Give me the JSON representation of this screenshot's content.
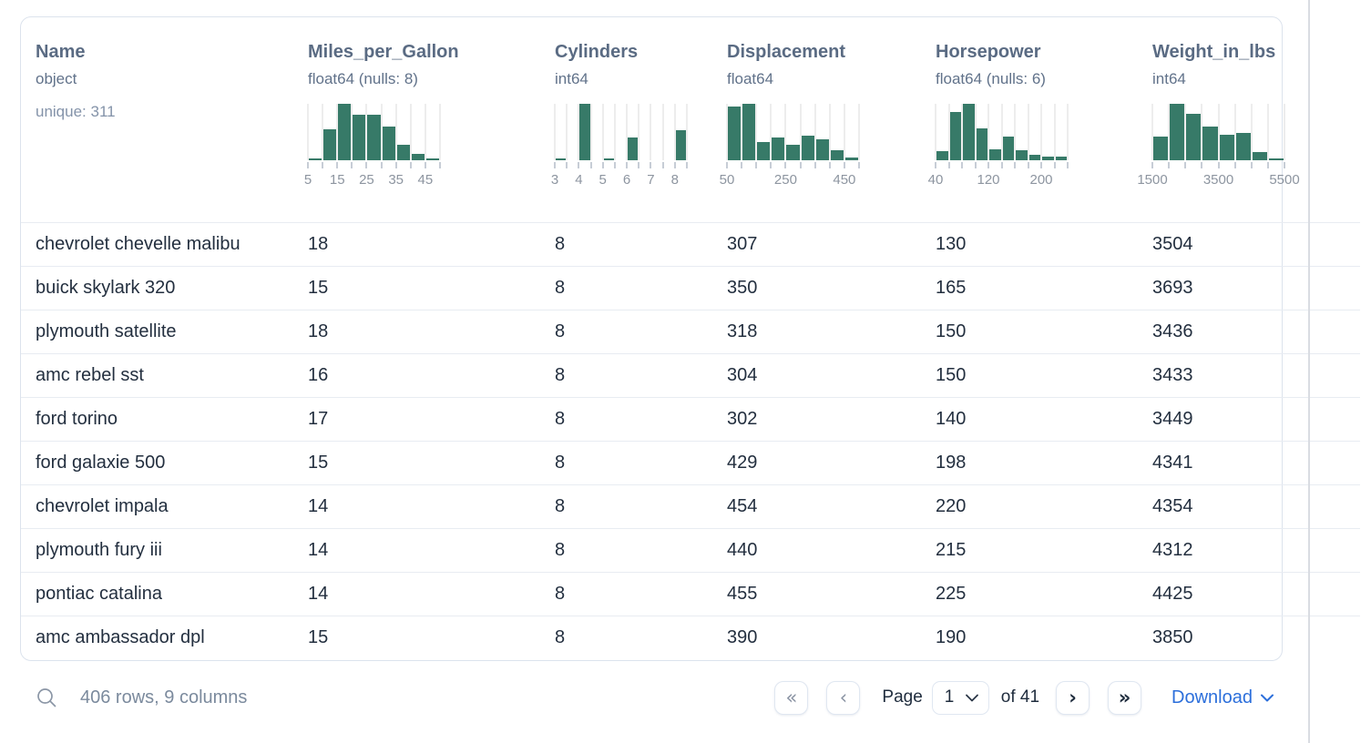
{
  "dataset": {
    "columns": [
      {
        "name": "Name",
        "type": "object",
        "unique": "unique: 311"
      },
      {
        "name": "Miles_per_Gallon",
        "type": "float64 (nulls: 8)",
        "histogram": {
          "heights": [
            0.03,
            0.55,
            1.0,
            0.8,
            0.8,
            0.6,
            0.28,
            0.11,
            0.03
          ],
          "tick_labels": [
            {
              "text": "5",
              "boundary": 0
            },
            {
              "text": "15",
              "boundary": 2
            },
            {
              "text": "25",
              "boundary": 4
            },
            {
              "text": "35",
              "boundary": 6
            },
            {
              "text": "45",
              "boundary": 8
            }
          ]
        }
      },
      {
        "name": "Cylinders",
        "type": "int64",
        "histogram": {
          "heights": [
            0.03,
            0,
            1.0,
            0,
            0.02,
            0,
            0.41,
            0,
            0,
            0,
            0.53
          ],
          "tick_labels": [
            {
              "text": "3",
              "boundary": 0
            },
            {
              "text": "4",
              "boundary": 2
            },
            {
              "text": "5",
              "boundary": 4
            },
            {
              "text": "6",
              "boundary": 6
            },
            {
              "text": "7",
              "boundary": 8
            },
            {
              "text": "8",
              "boundary": 10
            }
          ]
        }
      },
      {
        "name": "Displacement",
        "type": "float64",
        "histogram": {
          "heights": [
            0.95,
            1.0,
            0.33,
            0.4,
            0.28,
            0.43,
            0.37,
            0.18,
            0.05
          ],
          "tick_labels": [
            {
              "text": "50",
              "boundary": 0
            },
            {
              "text": "250",
              "boundary": 4
            },
            {
              "text": "450",
              "boundary": 8
            }
          ]
        }
      },
      {
        "name": "Horsepower",
        "type": "float64 (nulls: 6)",
        "histogram": {
          "heights": [
            0.16,
            0.85,
            1.0,
            0.57,
            0.2,
            0.42,
            0.18,
            0.1,
            0.07,
            0.06
          ],
          "tick_labels": [
            {
              "text": "40",
              "boundary": 0
            },
            {
              "text": "120",
              "boundary": 4
            },
            {
              "text": "200",
              "boundary": 8
            }
          ]
        }
      },
      {
        "name": "Weight_in_lbs",
        "type": "int64",
        "histogram": {
          "heights": [
            0.42,
            1.0,
            0.82,
            0.6,
            0.45,
            0.49,
            0.15,
            0.03
          ],
          "tick_labels": [
            {
              "text": "1500",
              "boundary": 0
            },
            {
              "text": "3500",
              "boundary": 4
            },
            {
              "text": "5500",
              "boundary": 8
            }
          ]
        }
      }
    ],
    "rows": [
      [
        "chevrolet chevelle malibu",
        "18",
        "8",
        "307",
        "130",
        "3504"
      ],
      [
        "buick skylark 320",
        "15",
        "8",
        "350",
        "165",
        "3693"
      ],
      [
        "plymouth satellite",
        "18",
        "8",
        "318",
        "150",
        "3436"
      ],
      [
        "amc rebel sst",
        "16",
        "8",
        "304",
        "150",
        "3433"
      ],
      [
        "ford torino",
        "17",
        "8",
        "302",
        "140",
        "3449"
      ],
      [
        "ford galaxie 500",
        "15",
        "8",
        "429",
        "198",
        "4341"
      ],
      [
        "chevrolet impala",
        "14",
        "8",
        "454",
        "220",
        "4354"
      ],
      [
        "plymouth fury iii",
        "14",
        "8",
        "440",
        "215",
        "4312"
      ],
      [
        "pontiac catalina",
        "14",
        "8",
        "455",
        "225",
        "4425"
      ],
      [
        "amc ambassador dpl",
        "15",
        "8",
        "390",
        "190",
        "3850"
      ]
    ]
  },
  "footer": {
    "status": "406 rows, 9 columns",
    "first_glyph": "«",
    "prev_glyph": "‹",
    "next_glyph": "›",
    "last_glyph": "»",
    "page_label": "Page",
    "page_value": "1",
    "of_label": "of 41",
    "download_label": "Download"
  },
  "colors": {
    "bar_green": "#377a68",
    "accent_blue": "#2c6fdb",
    "header_text": "#5a6b83",
    "row_text": "#232f3f"
  }
}
